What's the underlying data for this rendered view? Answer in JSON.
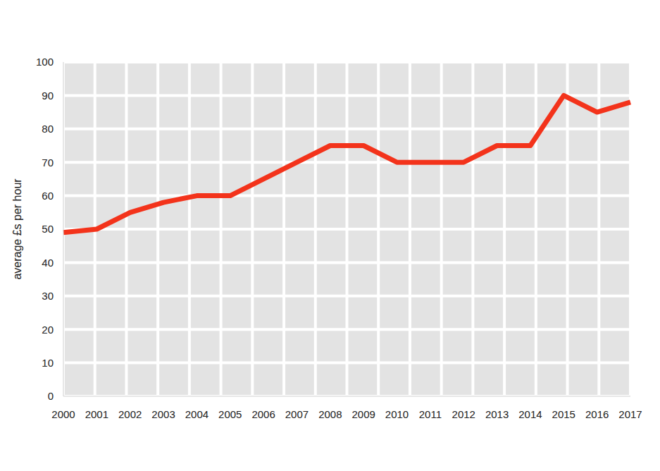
{
  "chart_data": {
    "type": "line",
    "categories": [
      "2000",
      "2001",
      "2002",
      "2003",
      "2004",
      "2005",
      "2006",
      "2007",
      "2008",
      "2009",
      "2010",
      "2011",
      "2012",
      "2013",
      "2014",
      "2015",
      "2016",
      "2017"
    ],
    "values": [
      49,
      50,
      55,
      58,
      60,
      60,
      65,
      70,
      75,
      75,
      70,
      70,
      70,
      75,
      75,
      90,
      85,
      88
    ],
    "color": "#f3331b",
    "y_label": "average £s per hour",
    "ylim": [
      0,
      100
    ],
    "yticks": [
      0,
      10,
      20,
      30,
      40,
      50,
      60,
      70,
      80,
      90,
      100
    ],
    "grid": true
  }
}
